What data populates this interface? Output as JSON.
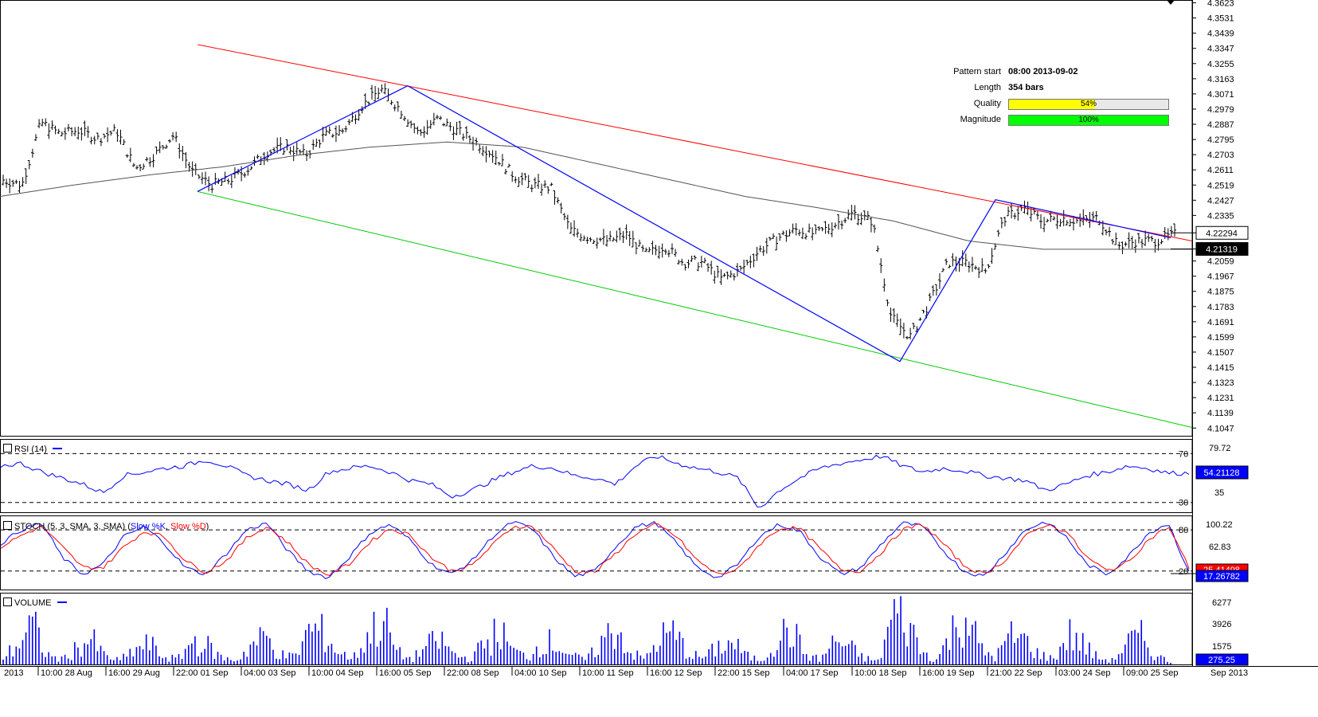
{
  "chart_data": [
    {
      "type": "line",
      "panel": "price",
      "series": [
        {
          "role": "price-bars",
          "color": "#000000",
          "x": [
            "10:00 28 Aug",
            "16:00 29 Aug",
            "22:00 01 Sep",
            "04:00 03 Sep",
            "10:00 04 Sep",
            "16:00 05 Sep",
            "22:00 08 Sep",
            "04:00 10 Sep",
            "10:00 11 Sep",
            "16:00 12 Sep",
            "22:00 15 Sep",
            "04:00 17 Sep",
            "10:00 18 Sep",
            "16:00 19 Sep",
            "21:00 22 Sep",
            "03:00 24 Sep",
            "09:00 25 Sep"
          ],
          "values": [
            4.285,
            4.28,
            4.255,
            4.265,
            4.28,
            4.3,
            4.275,
            4.25,
            4.22,
            4.205,
            4.19,
            4.22,
            4.232,
            4.17,
            4.235,
            4.22,
            4.22
          ]
        },
        {
          "role": "moving-average",
          "color": "#555555",
          "values": [
            4.245,
            4.252,
            4.258,
            4.263,
            4.27,
            4.275,
            4.278,
            4.275,
            4.265,
            4.255,
            4.245,
            4.238,
            4.23,
            4.218,
            4.213,
            4.213,
            4.213
          ]
        }
      ],
      "trendlines": [
        {
          "role": "resistance",
          "color": "#ff0000",
          "points": [
            [
              "start",
              4.337
            ],
            [
              "end",
              4.218
            ]
          ]
        },
        {
          "role": "support",
          "color": "#00cc00",
          "points": [
            [
              "start",
              4.248
            ],
            [
              "end",
              4.105
            ]
          ]
        },
        {
          "role": "zigzag",
          "color": "#0000ff",
          "points": [
            4.248,
            4.312,
            4.145,
            4.243,
            4.22
          ]
        }
      ],
      "y_ticks": [
        "4.3623",
        "4.3531",
        "4.3439",
        "4.3347",
        "4.3255",
        "4.3163",
        "4.3071",
        "4.2979",
        "4.2887",
        "4.2795",
        "4.2703",
        "4.2611",
        "4.2519",
        "4.2427",
        "4.2335",
        "4.2059",
        "4.1967",
        "4.1875",
        "4.1783",
        "4.1691",
        "4.1599",
        "4.1507",
        "4.1415",
        "4.1323",
        "4.1231",
        "4.1139",
        "4.1047"
      ],
      "ylim": [
        4.1,
        4.364
      ],
      "price_tags": [
        {
          "value": "4.22294",
          "bg": "#ffffff",
          "fg": "#000000"
        },
        {
          "value": "4.21319",
          "bg": "#000000",
          "fg": "#ffffff"
        }
      ],
      "info": {
        "pattern_start_label": "Pattern start",
        "pattern_start_value": "08:00 2013-09-02",
        "length_label": "Length",
        "length_value": "354 bars",
        "quality_label": "Quality",
        "quality_text": "54%",
        "quality": 0.54,
        "quality_color": "#ffff00",
        "magnitude_label": "Magnitude",
        "magnitude_text": "100%",
        "magnitude": 1.0,
        "magnitude_color": "#00ff00"
      }
    },
    {
      "type": "line",
      "panel": "rsi",
      "title": "RSI (14)",
      "series": [
        {
          "color": "#0000ff",
          "values": [
            60,
            62,
            55,
            50,
            45,
            38,
            52,
            55,
            58,
            60,
            65,
            60,
            52,
            48,
            45,
            40,
            55,
            58,
            60,
            55,
            48,
            45,
            35,
            40,
            48,
            55,
            60,
            58,
            52,
            50,
            45,
            60,
            68,
            62,
            58,
            55,
            50,
            25,
            40,
            50,
            58,
            62,
            65,
            68,
            60,
            55,
            58,
            56,
            52,
            50,
            48,
            40,
            45,
            52,
            55,
            60,
            58,
            54,
            54
          ]
        }
      ],
      "levels": [
        70,
        30
      ],
      "axis_labels": [
        "79.72",
        "35"
      ],
      "ylim": [
        22,
        82
      ],
      "current_value": "54.21128"
    },
    {
      "type": "line",
      "panel": "stoch",
      "title_prefix": "STOCH (5, 3, SMA, 3, SMA) (",
      "k_label": "Slow %K",
      "d_label": "Slow %D",
      "title_suffix": ")",
      "series": [
        {
          "name": "Slow %K",
          "color": "#0000ff",
          "values": [
            60,
            80,
            90,
            40,
            15,
            30,
            70,
            85,
            60,
            25,
            15,
            45,
            80,
            90,
            50,
            20,
            10,
            40,
            75,
            88,
            65,
            30,
            15,
            35,
            70,
            92,
            80,
            40,
            12,
            20,
            55,
            85,
            90,
            60,
            25,
            10,
            30,
            70,
            88,
            78,
            40,
            15,
            25,
            60,
            90,
            85,
            50,
            20,
            12,
            45,
            80,
            92,
            70,
            30,
            15,
            40,
            75,
            90,
            17
          ]
        },
        {
          "name": "Slow %D",
          "color": "#ff0000",
          "values": [
            55,
            72,
            85,
            55,
            25,
            25,
            55,
            78,
            70,
            35,
            18,
            35,
            68,
            85,
            62,
            30,
            14,
            30,
            62,
            82,
            72,
            40,
            20,
            28,
            58,
            85,
            85,
            52,
            20,
            18,
            45,
            75,
            88,
            70,
            35,
            15,
            22,
            58,
            82,
            82,
            52,
            22,
            20,
            48,
            80,
            88,
            60,
            28,
            15,
            35,
            70,
            88,
            78,
            40,
            20,
            32,
            65,
            85,
            25
          ]
        }
      ],
      "levels": [
        80,
        20
      ],
      "axis_labels": [
        "100.22",
        "62.83",
        "80",
        "20"
      ],
      "ylim": [
        -7,
        101
      ],
      "current_values": [
        {
          "value": "25.41498",
          "bg": "#ff0000",
          "fg": "#ffffff"
        },
        {
          "value": "17.26782",
          "bg": "#0000ff",
          "fg": "#ffffff"
        }
      ]
    },
    {
      "type": "bar",
      "panel": "volume",
      "title": "VOLUME",
      "series": [
        {
          "color": "#0000ff",
          "values": [
            800,
            2500,
            5000,
            1200,
            600,
            2000,
            3200,
            1000,
            500,
            1800,
            2600,
            900,
            700,
            3100,
            2300,
            800,
            500,
            2400,
            3500,
            1200,
            900,
            4500,
            3800,
            1400,
            800,
            3600,
            5800,
            1500,
            600,
            2300,
            3000,
            1100,
            700,
            2600,
            4200,
            1600,
            900,
            3000,
            2500,
            1000,
            600,
            2800,
            4800,
            1400,
            700,
            3300,
            3900,
            1300,
            800,
            2200,
            2700,
            1000,
            500,
            3200,
            4400,
            1200,
            600,
            3000,
            2100,
            800,
            400,
            6500,
            5100,
            1500,
            600,
            4000,
            6600,
            1800,
            900,
            3500,
            3100,
            1200,
            700,
            3800,
            2600,
            800,
            500,
            2700,
            3400,
            1100,
            300
          ]
        }
      ],
      "axis_labels": [
        "6277",
        "3926",
        "1575"
      ],
      "ylim": [
        0,
        6800
      ],
      "current_value": "275.25"
    }
  ],
  "x_axis": {
    "labels": [
      "2013",
      "10:00 28 Aug",
      "16:00 29 Aug",
      "22:00 01 Sep",
      "04:00 03 Sep",
      "10:00 04 Sep",
      "16:00 05 Sep",
      "22:00 08 Sep",
      "04:00 10 Sep",
      "10:00 11 Sep",
      "16:00 12 Sep",
      "22:00 15 Sep",
      "04:00 17 Sep",
      "10:00 18 Sep",
      "16:00 19 Sep",
      "21:00 22 Sep",
      "03:00 24 Sep",
      "09:00 25 Sep",
      "Sep 2013"
    ]
  },
  "rsi_value_text": "14",
  "colors": {
    "frame": "#000000",
    "grid_dash": "#000000"
  }
}
